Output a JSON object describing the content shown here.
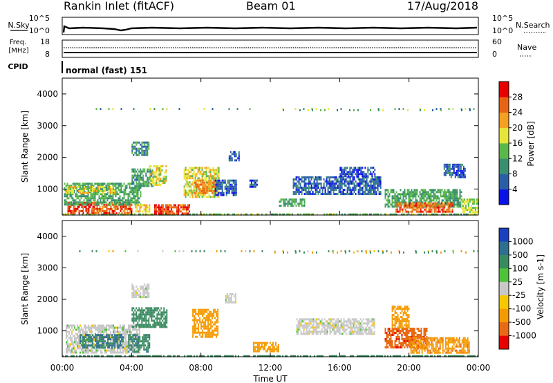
{
  "header": {
    "station": "Rankin Inlet (fitACF)",
    "beam": "Beam 01",
    "date": "17/Aug/2018"
  },
  "status_panels": {
    "nsky": {
      "label": "N.Sky",
      "ticks": [
        "10^5",
        "10^0"
      ]
    },
    "nsearch": {
      "label": "N.Search",
      "ticks": [
        "10^5",
        "10^0"
      ]
    },
    "freq": {
      "label_line1": "Freq.",
      "label_line2": "[MHz]",
      "ticks": [
        "18",
        "8"
      ]
    },
    "nave": {
      "label": "Nave",
      "ticks": [
        "60",
        "0"
      ]
    },
    "cpid": {
      "label": "CPID",
      "text": "normal (fast) 151"
    }
  },
  "chart_data": [
    {
      "type": "heatmap",
      "panel": "power",
      "ylabel": "Slant Range [km]",
      "xlabel": "",
      "x_ticks": [],
      "y_ticks": [
        "1000",
        "2000",
        "3000",
        "4000"
      ],
      "ylim": [
        180,
        4500
      ],
      "xlim_hours": [
        0,
        24
      ],
      "colorbar": {
        "label": "Power [dB]",
        "tick_labels": [
          "4",
          "8",
          "12",
          "16",
          "20",
          "24",
          "28"
        ],
        "colors": [
          "#0a12e8",
          "#2a5fa8",
          "#3a8f70",
          "#5ab84a",
          "#e6e63a",
          "#f5a020",
          "#e86414",
          "#e80000"
        ]
      },
      "regions": [
        {
          "t0": 0.0,
          "t1": 24.0,
          "r0": 180,
          "r1": 230,
          "v": 14
        },
        {
          "t0": 0.3,
          "t1": 4.0,
          "r0": 230,
          "r1": 600,
          "v": 27
        },
        {
          "t0": 0.1,
          "t1": 4.5,
          "r0": 500,
          "r1": 1200,
          "v": 12
        },
        {
          "t0": 0.2,
          "t1": 3.0,
          "r0": 900,
          "r1": 1100,
          "v": 18
        },
        {
          "t0": 4.0,
          "t1": 5.2,
          "r0": 1100,
          "r1": 1650,
          "v": 10
        },
        {
          "t0": 5.0,
          "t1": 6.0,
          "r0": 1150,
          "r1": 1750,
          "v": 18
        },
        {
          "t0": 5.3,
          "t1": 7.3,
          "r0": 240,
          "r1": 520,
          "v": 27
        },
        {
          "t0": 4.2,
          "t1": 5.0,
          "r0": 260,
          "r1": 520,
          "v": 20
        },
        {
          "t0": 4.0,
          "t1": 5.0,
          "r0": 2050,
          "r1": 2500,
          "v": 10
        },
        {
          "t0": 7.0,
          "t1": 9.0,
          "r0": 720,
          "r1": 1700,
          "v": 18
        },
        {
          "t0": 7.6,
          "t1": 8.8,
          "r0": 900,
          "r1": 1300,
          "v": 24
        },
        {
          "t0": 8.8,
          "t1": 10.0,
          "r0": 800,
          "r1": 1300,
          "v": 6
        },
        {
          "t0": 9.6,
          "t1": 10.2,
          "r0": 1900,
          "r1": 2200,
          "v": 6
        },
        {
          "t0": 10.8,
          "t1": 11.2,
          "r0": 1100,
          "r1": 1300,
          "v": 6
        },
        {
          "t0": 12.5,
          "t1": 14.0,
          "r0": 450,
          "r1": 700,
          "v": 12
        },
        {
          "t0": 13.3,
          "t1": 18.4,
          "r0": 850,
          "r1": 1400,
          "v": 6
        },
        {
          "t0": 16.0,
          "t1": 18.0,
          "r0": 1400,
          "r1": 1700,
          "v": 5
        },
        {
          "t0": 18.6,
          "t1": 23.0,
          "r0": 470,
          "r1": 1000,
          "v": 12
        },
        {
          "t0": 19.2,
          "t1": 22.5,
          "r0": 280,
          "r1": 580,
          "v": 26
        },
        {
          "t0": 22.0,
          "t1": 23.2,
          "r0": 1400,
          "r1": 1800,
          "v": 6
        },
        {
          "t0": 23.0,
          "t1": 24.0,
          "r0": 250,
          "r1": 700,
          "v": 16
        }
      ],
      "sparse_rows": [
        {
          "r": 3560,
          "t0": 0.5,
          "t1": 24.0
        },
        {
          "r": 3520,
          "t0": 12.0,
          "t1": 23.5
        }
      ]
    },
    {
      "type": "heatmap",
      "panel": "velocity",
      "ylabel": "Slant Range [km]",
      "xlabel": "Time UT",
      "x_ticks": [
        "00:00",
        "04:00",
        "08:00",
        "12:00",
        "16:00",
        "20:00",
        "00:00"
      ],
      "y_ticks": [
        "1000",
        "2000",
        "3000",
        "4000"
      ],
      "ylim": [
        180,
        4500
      ],
      "xlim_hours": [
        0,
        24
      ],
      "colorbar": {
        "label": "Velocity [m s-1]",
        "tick_labels": [
          "1000",
          "500",
          "100",
          "25",
          "-25",
          "-100",
          "-500",
          "-1000"
        ],
        "colors": [
          "#1a3fbf",
          "#2e6e8e",
          "#3a8a60",
          "#4fc23a",
          "#c8c8c8",
          "#f5c800",
          "#f59a00",
          "#e86a14",
          "#e80000"
        ]
      },
      "regions": [
        {
          "t0": 0.0,
          "t1": 24.0,
          "r0": 180,
          "r1": 230,
          "v": 100
        },
        {
          "t0": 0.2,
          "t1": 4.5,
          "r0": 300,
          "r1": 1200,
          "v": 0
        },
        {
          "t0": 1.0,
          "t1": 3.5,
          "r0": 500,
          "r1": 900,
          "v": 300
        },
        {
          "t0": 4.0,
          "t1": 6.0,
          "r0": 1100,
          "r1": 1750,
          "v": 150
        },
        {
          "t0": 3.8,
          "t1": 5.0,
          "r0": 350,
          "r1": 900,
          "v": 250
        },
        {
          "t0": 4.0,
          "t1": 5.0,
          "r0": 2050,
          "r1": 2500,
          "v": 0
        },
        {
          "t0": 7.5,
          "t1": 9.0,
          "r0": 800,
          "r1": 1700,
          "v": -200
        },
        {
          "t0": 9.4,
          "t1": 10.0,
          "r0": 1900,
          "r1": 2200,
          "v": 0
        },
        {
          "t0": 11.0,
          "t1": 12.5,
          "r0": 350,
          "r1": 650,
          "v": -150
        },
        {
          "t0": 13.5,
          "t1": 18.0,
          "r0": 900,
          "r1": 1400,
          "v": 0
        },
        {
          "t0": 18.6,
          "t1": 21.0,
          "r0": 450,
          "r1": 1100,
          "v": -600
        },
        {
          "t0": 20.0,
          "t1": 23.5,
          "r0": 300,
          "r1": 800,
          "v": -250
        },
        {
          "t0": 19.0,
          "t1": 20.0,
          "r0": 1100,
          "r1": 1800,
          "v": -200
        }
      ],
      "sparse_rows": [
        {
          "r": 3560,
          "t0": 0.5,
          "t1": 24.0
        },
        {
          "r": 3520,
          "t0": 12.0,
          "t1": 23.5
        }
      ]
    }
  ]
}
